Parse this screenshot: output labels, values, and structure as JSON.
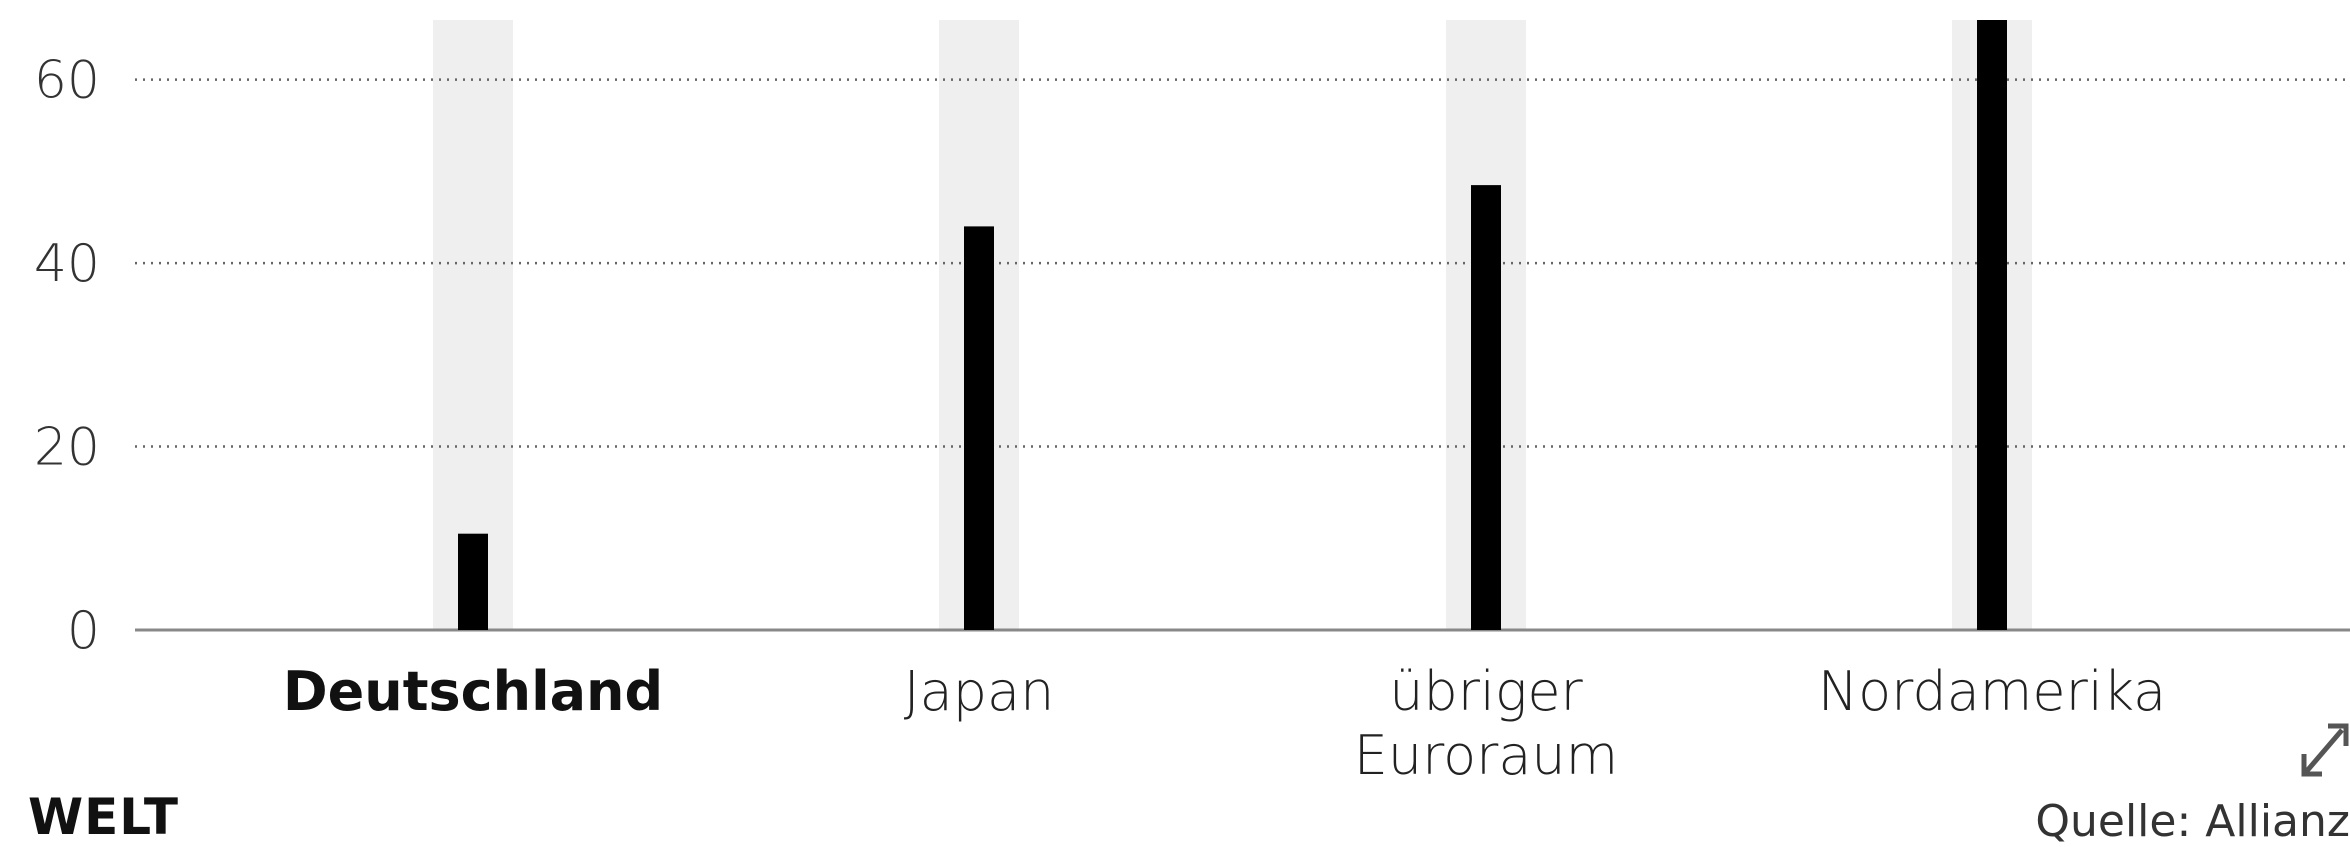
{
  "chart_data": {
    "type": "bar",
    "categories": [
      "Deutschland",
      "Japan",
      "übriger Euroraum",
      "Nordamerika"
    ],
    "category_lines": [
      [
        "Deutschland"
      ],
      [
        "Japan"
      ],
      [
        "übriger",
        "Euroraum"
      ],
      [
        "Nordamerika"
      ]
    ],
    "highlight_category": "Deutschland",
    "values": [
      10.5,
      44,
      48.5,
      66.5
    ],
    "ylim": [
      0,
      66.5
    ],
    "yticks": [
      0,
      20,
      40,
      60
    ],
    "title": "",
    "xlabel": "",
    "ylabel": "",
    "grid": "horizontal dotted",
    "bar_color": "#000000",
    "highlight_band_color": "#efefef"
  },
  "brand": {
    "logo": "WELT"
  },
  "footer": {
    "source": "Quelle: Allianz"
  },
  "icons": {
    "expand": "expand-icon"
  }
}
